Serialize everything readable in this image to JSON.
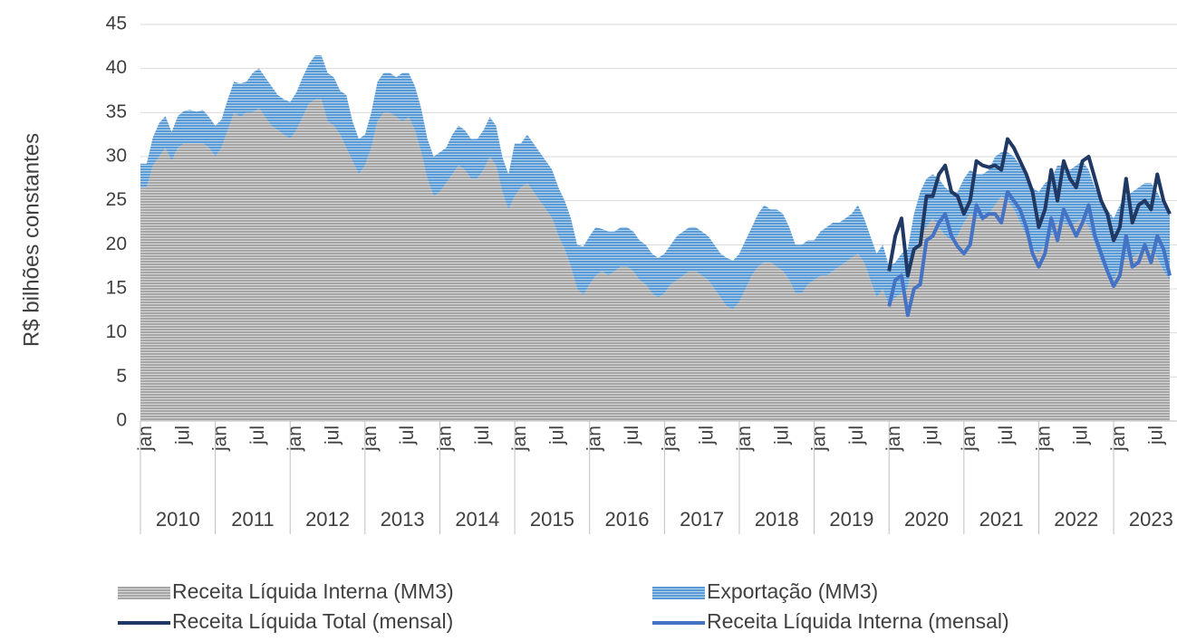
{
  "chart_data": {
    "type": "stacked-area-line",
    "y_label": "R$ bilhões constantes",
    "categories": [
      "jan",
      null,
      null,
      null,
      null,
      null,
      "jul",
      null,
      null,
      null,
      null,
      null,
      "jan",
      null,
      null,
      null,
      null,
      null,
      "jul",
      null,
      null,
      null,
      null,
      null,
      "jan",
      null,
      null,
      null,
      null,
      null,
      "jul",
      null,
      null,
      null,
      null,
      null,
      "jan",
      null,
      null,
      null,
      null,
      null,
      "jul",
      null,
      null,
      null,
      null,
      null,
      "jan",
      null,
      null,
      null,
      null,
      null,
      "jul",
      null,
      null,
      null,
      null,
      null,
      "jan",
      null,
      null,
      null,
      null,
      null,
      "jul",
      null,
      null,
      null,
      null,
      null,
      "jan",
      null,
      null,
      null,
      null,
      null,
      "jul",
      null,
      null,
      null,
      null,
      null,
      "jan",
      null,
      null,
      null,
      null,
      null,
      "jul",
      null,
      null,
      null,
      null,
      null,
      "jan",
      null,
      null,
      null,
      null,
      null,
      "jul",
      null,
      null,
      null,
      null,
      null,
      "jan",
      null,
      null,
      null,
      null,
      null,
      "jul",
      null,
      null,
      null,
      null,
      null,
      "jan",
      null,
      null,
      null,
      null,
      null,
      "jul",
      null,
      null,
      null,
      null,
      null,
      "jan",
      null,
      null,
      null,
      null,
      null,
      "jul",
      null,
      null,
      null,
      null,
      null,
      "jan",
      null,
      null,
      null,
      null,
      null,
      "jul",
      null,
      null,
      null,
      null,
      null,
      "jan",
      null,
      null,
      null,
      null,
      null,
      "jul",
      null,
      null,
      null
    ],
    "years": [
      "2010",
      "2011",
      "2012",
      "2013",
      "2014",
      "2015",
      "2016",
      "2017",
      "2018",
      "2019",
      "2020",
      "2021",
      "2022",
      "2023"
    ],
    "ylim": [
      0,
      45
    ],
    "yticks": [
      0,
      5,
      10,
      15,
      20,
      25,
      30,
      35,
      40,
      45
    ],
    "grid": true,
    "series": [
      {
        "name": "Receita Líquida Interna (MM3)",
        "kind": "area",
        "color": "#a6a6a6",
        "values": [
          26.5,
          26.5,
          29,
          30,
          31,
          29.5,
          31,
          31.5,
          31.5,
          31.5,
          31.5,
          31,
          30,
          31,
          33,
          35,
          34.5,
          35,
          35,
          35.5,
          34.5,
          33.5,
          33,
          32.5,
          32,
          33,
          34.5,
          36,
          36.5,
          36.5,
          34,
          33.5,
          32.5,
          31,
          29.5,
          28,
          29,
          31,
          34,
          35,
          35,
          34.5,
          34,
          34.5,
          33,
          30.5,
          27.5,
          25.5,
          26,
          27,
          28,
          29,
          28.5,
          27.5,
          27.5,
          28.5,
          30,
          29,
          26,
          24,
          25.5,
          26.5,
          27,
          26,
          25,
          24,
          23,
          21,
          19.5,
          17.5,
          15,
          14.3,
          15.5,
          16.5,
          17,
          16.5,
          17,
          17.5,
          17.5,
          17,
          16,
          15.5,
          14.5,
          14,
          14.5,
          15.5,
          16,
          16.5,
          17,
          17,
          16.5,
          16,
          15,
          14,
          13,
          12.7,
          13.5,
          15,
          16.5,
          17.5,
          18,
          18,
          17.5,
          17,
          16,
          14.5,
          14.5,
          15.5,
          16,
          16.5,
          16.5,
          17,
          17.5,
          18,
          18.5,
          19,
          18,
          16,
          14,
          15,
          13,
          14,
          14.5,
          15,
          19,
          21,
          22,
          23,
          22,
          21,
          20.5,
          21,
          22.5,
          23.5,
          23,
          23,
          23.5,
          24.5,
          25.5,
          25,
          24,
          22.5,
          21,
          19.5,
          19,
          20,
          21,
          22.5,
          22.5,
          22,
          22.5,
          23,
          22,
          20,
          18,
          16.5,
          16,
          17.5,
          18.5,
          18.5,
          19,
          19.5,
          19.5,
          18.5,
          17,
          16
        ]
      },
      {
        "name": "Exportação (MM3)",
        "kind": "area",
        "color": "#5b9bd5",
        "values": [
          2.7,
          2.7,
          3.2,
          3.8,
          3.6,
          3.3,
          3.6,
          3.7,
          3.8,
          3.6,
          3.8,
          3.5,
          3.5,
          3.2,
          3.5,
          3.5,
          3.8,
          3.5,
          4.5,
          4.5,
          4.5,
          4.5,
          4,
          4,
          4.2,
          4.3,
          4.5,
          4.5,
          5,
          5,
          5.5,
          5.5,
          5,
          6,
          4.5,
          4,
          3.5,
          4,
          4.5,
          4.5,
          4.5,
          4.5,
          5.5,
          5,
          5,
          5,
          4.5,
          4.5,
          4.5,
          4,
          4.5,
          4.5,
          4.5,
          4.5,
          4.5,
          4.5,
          4.5,
          4.5,
          4,
          4,
          6,
          5,
          5.5,
          5.5,
          5.5,
          5.5,
          5.5,
          5.5,
          5.5,
          5.5,
          5,
          5.5,
          5.5,
          5.5,
          4.8,
          5,
          4.5,
          4.5,
          4.5,
          4.5,
          4.5,
          4.5,
          4.5,
          4.5,
          4.5,
          4.5,
          5,
          5,
          5,
          5,
          5,
          5,
          5,
          5,
          5.5,
          5.5,
          5.5,
          5.5,
          5.5,
          6,
          6.5,
          6,
          6.5,
          6.5,
          6,
          5.5,
          5.5,
          5,
          4.5,
          5,
          5.5,
          5.5,
          5,
          5,
          5,
          5.5,
          5,
          5,
          5,
          5,
          4.5,
          4,
          4.5,
          4.5,
          4.5,
          5,
          5.5,
          5,
          5.5,
          5.5,
          5.5,
          5,
          5,
          5,
          5,
          5,
          5,
          5.5,
          5,
          5.5,
          6,
          6.5,
          6.5,
          7,
          7,
          7,
          6.5,
          6.5,
          6.5,
          6.5,
          6.5,
          6.5,
          6.5,
          6.5,
          7,
          7.5,
          7,
          7,
          7,
          7.5,
          7.5,
          7.5,
          7.5,
          7.5,
          7.5,
          7.5
        ]
      },
      {
        "name": "Receita Líquida Total (mensal)",
        "kind": "line",
        "color": "#203864",
        "values": [
          null,
          null,
          null,
          null,
          null,
          null,
          null,
          null,
          null,
          null,
          null,
          null,
          null,
          null,
          null,
          null,
          null,
          null,
          null,
          null,
          null,
          null,
          null,
          null,
          null,
          null,
          null,
          null,
          null,
          null,
          null,
          null,
          null,
          null,
          null,
          null,
          null,
          null,
          null,
          null,
          null,
          null,
          null,
          null,
          null,
          null,
          null,
          null,
          null,
          null,
          null,
          null,
          null,
          null,
          null,
          null,
          null,
          null,
          null,
          null,
          null,
          null,
          null,
          null,
          null,
          null,
          null,
          null,
          null,
          null,
          null,
          null,
          null,
          null,
          null,
          null,
          null,
          null,
          null,
          null,
          null,
          null,
          null,
          null,
          null,
          null,
          null,
          null,
          null,
          null,
          null,
          null,
          null,
          null,
          null,
          null,
          null,
          null,
          null,
          null,
          null,
          null,
          null,
          null,
          null,
          null,
          null,
          null,
          null,
          null,
          null,
          null,
          null,
          null,
          null,
          null,
          null,
          null,
          null,
          null,
          17,
          21,
          23,
          16.5,
          19.5,
          20,
          25.5,
          25.5,
          28,
          29,
          26,
          25.5,
          23.5,
          25,
          29.5,
          29,
          28.8,
          29,
          28.5,
          32,
          31,
          29.5,
          28,
          26,
          22,
          24,
          28.5,
          25,
          29.5,
          27.5,
          26.5,
          29.5,
          30,
          27.5,
          25,
          23.5,
          20.5,
          22,
          27.5,
          22.5,
          24.5,
          25,
          24,
          28,
          25,
          23.5
        ]
      },
      {
        "name": "Receita Líquida Interna (mensal)",
        "kind": "line",
        "color": "#4472c4",
        "values": [
          null,
          null,
          null,
          null,
          null,
          null,
          null,
          null,
          null,
          null,
          null,
          null,
          null,
          null,
          null,
          null,
          null,
          null,
          null,
          null,
          null,
          null,
          null,
          null,
          null,
          null,
          null,
          null,
          null,
          null,
          null,
          null,
          null,
          null,
          null,
          null,
          null,
          null,
          null,
          null,
          null,
          null,
          null,
          null,
          null,
          null,
          null,
          null,
          null,
          null,
          null,
          null,
          null,
          null,
          null,
          null,
          null,
          null,
          null,
          null,
          null,
          null,
          null,
          null,
          null,
          null,
          null,
          null,
          null,
          null,
          null,
          null,
          null,
          null,
          null,
          null,
          null,
          null,
          null,
          null,
          null,
          null,
          null,
          null,
          null,
          null,
          null,
          null,
          null,
          null,
          null,
          null,
          null,
          null,
          null,
          null,
          null,
          null,
          null,
          null,
          null,
          null,
          null,
          null,
          null,
          null,
          null,
          null,
          null,
          null,
          null,
          null,
          null,
          null,
          null,
          null,
          null,
          null,
          null,
          null,
          13,
          16,
          16.5,
          12,
          15,
          15.5,
          20.5,
          21,
          22.5,
          23.5,
          21,
          19.8,
          19,
          20,
          24.5,
          23,
          23.5,
          23.5,
          22.5,
          26,
          25,
          24,
          22,
          19,
          17.5,
          19,
          23,
          20.5,
          24,
          22.5,
          21,
          22.5,
          24.5,
          21,
          19,
          17,
          15.3,
          16.5,
          21,
          17.5,
          18,
          20,
          18,
          21,
          19.5,
          16.5
        ]
      }
    ]
  }
}
